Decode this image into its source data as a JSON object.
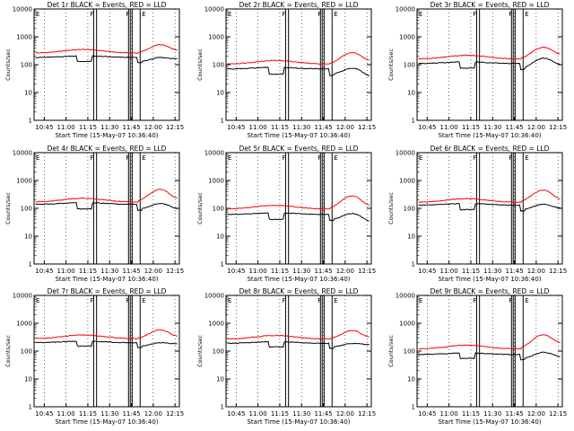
{
  "figure": {
    "xtick_labels": [
      "10:45",
      "11:00",
      "11:15",
      "11:30",
      "11:45",
      "12:00",
      "12:15"
    ],
    "ytick_labels": [
      "1",
      "10",
      "100",
      "1000",
      "10000"
    ],
    "ylabel": "Counts/sec",
    "xlabel": "Start Time (15-May-07 10:36:40)"
  },
  "chart_data": [
    {
      "type": "line",
      "title": "Det 1r BLACK = Events, RED = LLD",
      "flags": [
        "F",
        "F",
        "E"
      ],
      "ylog": true,
      "ylim": [
        1,
        10000
      ],
      "xlim": [
        "10:38",
        "12:18"
      ],
      "series": [
        {
          "color": "#000000",
          "base": 180,
          "dip": 130,
          "peak": 180,
          "end": 160
        },
        {
          "color": "#ff0000",
          "base": 260,
          "dip": 240,
          "peak": 520,
          "end": 320
        }
      ]
    },
    {
      "type": "line",
      "title": "Det 2r BLACK = Events, RED = LLD",
      "flags": [
        "F",
        "F",
        "E"
      ],
      "ylog": true,
      "ylim": [
        1,
        10000
      ],
      "xlim": [
        "10:38",
        "12:18"
      ],
      "series": [
        {
          "color": "#000000",
          "base": 70,
          "dip": 45,
          "peak": 75,
          "end": 35
        },
        {
          "color": "#ff0000",
          "base": 105,
          "dip": 80,
          "peak": 270,
          "end": 140
        }
      ]
    },
    {
      "type": "line",
      "title": "Det 3r BLACK = Events, RED = LLD",
      "flags": [
        "F",
        "F",
        "E"
      ],
      "ylog": true,
      "ylim": [
        1,
        10000
      ],
      "xlim": [
        "10:38",
        "12:18"
      ],
      "series": [
        {
          "color": "#000000",
          "base": 110,
          "dip": 75,
          "peak": 170,
          "end": 90
        },
        {
          "color": "#ff0000",
          "base": 160,
          "dip": 140,
          "peak": 420,
          "end": 230
        }
      ]
    },
    {
      "type": "line",
      "title": "Det 4r BLACK = Events, RED = LLD",
      "flags": [
        "F",
        "F",
        "E"
      ],
      "ylog": true,
      "ylim": [
        1,
        10000
      ],
      "xlim": [
        "10:38",
        "12:18"
      ],
      "series": [
        {
          "color": "#000000",
          "base": 140,
          "dip": 95,
          "peak": 150,
          "end": 90
        },
        {
          "color": "#ff0000",
          "base": 170,
          "dip": 150,
          "peak": 480,
          "end": 210
        }
      ]
    },
    {
      "type": "line",
      "title": "Det 5r BLACK = Events, RED = LLD",
      "flags": [
        "F",
        "F",
        "E"
      ],
      "ylog": true,
      "ylim": [
        1,
        10000
      ],
      "xlim": [
        "10:38",
        "12:18"
      ],
      "series": [
        {
          "color": "#000000",
          "base": 60,
          "dip": 40,
          "peak": 65,
          "end": 30
        },
        {
          "color": "#ff0000",
          "base": 95,
          "dip": 75,
          "peak": 280,
          "end": 120
        }
      ]
    },
    {
      "type": "line",
      "title": "Det 6r BLACK = Events, RED = LLD",
      "flags": [
        "F",
        "F",
        "E"
      ],
      "ylog": true,
      "ylim": [
        1,
        10000
      ],
      "xlim": [
        "10:38",
        "12:18"
      ],
      "series": [
        {
          "color": "#000000",
          "base": 130,
          "dip": 90,
          "peak": 140,
          "end": 95
        },
        {
          "color": "#ff0000",
          "base": 165,
          "dip": 145,
          "peak": 450,
          "end": 200
        }
      ]
    },
    {
      "type": "line",
      "title": "Det 7r BLACK = Events, RED = LLD",
      "flags": [
        "F",
        "F",
        "E"
      ],
      "ylog": true,
      "ylim": [
        1,
        10000
      ],
      "xlim": [
        "10:38",
        "12:18"
      ],
      "series": [
        {
          "color": "#000000",
          "base": 200,
          "dip": 150,
          "peak": 200,
          "end": 180
        },
        {
          "color": "#ff0000",
          "base": 280,
          "dip": 260,
          "peak": 580,
          "end": 330
        }
      ]
    },
    {
      "type": "line",
      "title": "Det 8r BLACK = Events, RED = LLD",
      "flags": [
        "F",
        "F",
        "E"
      ],
      "ylog": true,
      "ylim": [
        1,
        10000
      ],
      "xlim": [
        "10:38",
        "12:18"
      ],
      "series": [
        {
          "color": "#000000",
          "base": 190,
          "dip": 140,
          "peak": 190,
          "end": 170
        },
        {
          "color": "#ff0000",
          "base": 270,
          "dip": 250,
          "peak": 550,
          "end": 310
        }
      ]
    },
    {
      "type": "line",
      "title": "Det 9r BLACK = Events, RED = LLD",
      "flags": [
        "F",
        "F",
        "E"
      ],
      "ylog": true,
      "ylim": [
        1,
        10000
      ],
      "xlim": [
        "10:38",
        "12:18"
      ],
      "series": [
        {
          "color": "#000000",
          "base": 75,
          "dip": 55,
          "peak": 90,
          "end": 60
        },
        {
          "color": "#ff0000",
          "base": 120,
          "dip": 105,
          "peak": 380,
          "end": 190
        }
      ]
    }
  ]
}
